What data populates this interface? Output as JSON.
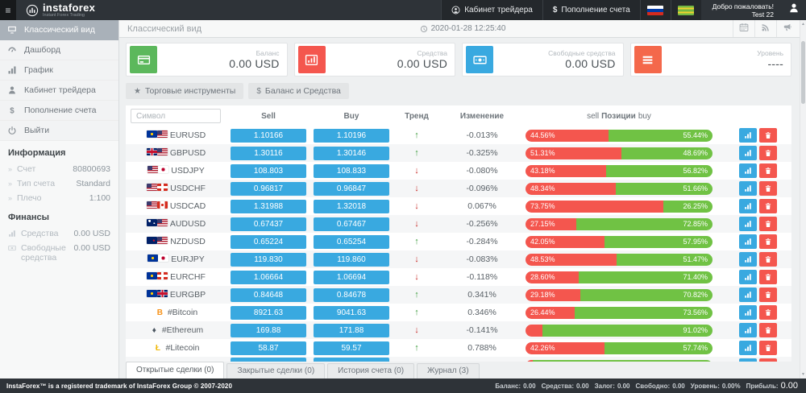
{
  "glyphs": {
    "hamburger": "≡",
    "star": "★",
    "dollar": "$",
    "chevron": "»",
    "trend_up": "↑",
    "trend_down": "↓",
    "scroll_up": "▲",
    "scroll_down": "▼"
  },
  "colors": {
    "accent_blue": "#39a9e0",
    "sell_red": "#f4564e",
    "buy_green": "#70c244",
    "navbar_dark": "#2e3338"
  },
  "navbar": {
    "logo_text": "instaforex",
    "logo_sub": "Instant Forex Trading",
    "trader_cabinet_label": "Кабинет трейдера",
    "deposit_label": "Пополнение счета",
    "welcome_line1": "Добро пожаловать!",
    "welcome_line2": "Test 22"
  },
  "topbar": {
    "page_title": "Классический вид",
    "datetime": "2020-01-28 12:25:40"
  },
  "sidebar": {
    "items": [
      {
        "id": "classic",
        "label": "Классический вид",
        "icon": "monitor-icon",
        "active": true
      },
      {
        "id": "dashboard",
        "label": "Дашборд",
        "icon": "dashboard-icon",
        "active": false
      },
      {
        "id": "chart",
        "label": "График",
        "icon": "chart-icon",
        "active": false
      },
      {
        "id": "cabinet",
        "label": "Кабинет трейдера",
        "icon": "user-icon",
        "active": false
      },
      {
        "id": "deposit",
        "label": "Пополнение счета",
        "icon": "dollar-icon",
        "active": false
      },
      {
        "id": "logout",
        "label": "Выйти",
        "icon": "power-icon",
        "active": false
      }
    ],
    "info_section": {
      "title": "Информация",
      "rows": [
        {
          "label": "Счет",
          "value": "80800693"
        },
        {
          "label": "Тип счета",
          "value": "Standard"
        },
        {
          "label": "Плечо",
          "value": "1:100"
        }
      ]
    },
    "finance_section": {
      "title": "Финансы",
      "rows": [
        {
          "label": "Средства",
          "value": "0.00 USD",
          "icon": "chart-icon"
        },
        {
          "label": "Свободные средства",
          "value": "0.00 USD",
          "icon": "money-icon"
        }
      ]
    }
  },
  "cards": [
    {
      "label": "Баланс",
      "value": "0.00 USD",
      "color": "#5cb85c",
      "icon": "credit-card-icon"
    },
    {
      "label": "Средства",
      "value": "0.00 USD",
      "color": "#f4564e",
      "icon": "bar-chart-icon"
    },
    {
      "label": "Свободные средства",
      "value": "0.00 USD",
      "color": "#39a9e0",
      "icon": "money-icon"
    },
    {
      "label": "Уровень",
      "value": "----",
      "color": "#f4684b",
      "icon": "list-icon"
    }
  ],
  "toolbar": {
    "instruments_label": "Торговые инструменты",
    "balance_label": "Баланс и Средства"
  },
  "table": {
    "symbol_placeholder": "Символ",
    "headers": {
      "sell": "Sell",
      "buy": "Buy",
      "trend": "Тренд",
      "change": "Изменение",
      "pos_left": "sell",
      "pos_mid": "Позиции",
      "pos_right": "buy"
    },
    "rows": [
      {
        "symbol": "EURUSD",
        "icons": [
          {
            "flag": "eu"
          },
          {
            "flag": "us"
          }
        ],
        "sell": "1.10166",
        "buy": "1.10196",
        "trend": "up",
        "change": "-0.013%",
        "sell_pct": 44.56,
        "buy_pct": 55.44,
        "sell_label": "44.56%",
        "buy_label": "55.44%"
      },
      {
        "symbol": "GBPUSD",
        "icons": [
          {
            "flag": "gb"
          },
          {
            "flag": "us"
          }
        ],
        "sell": "1.30116",
        "buy": "1.30146",
        "trend": "up",
        "change": "-0.325%",
        "sell_pct": 51.31,
        "buy_pct": 48.69,
        "sell_label": "51.31%",
        "buy_label": "48.69%"
      },
      {
        "symbol": "USDJPY",
        "icons": [
          {
            "flag": "us"
          },
          {
            "flag": "jp"
          }
        ],
        "sell": "108.803",
        "buy": "108.833",
        "trend": "down",
        "change": "-0.080%",
        "sell_pct": 43.18,
        "buy_pct": 56.82,
        "sell_label": "43.18%",
        "buy_label": "56.82%"
      },
      {
        "symbol": "USDCHF",
        "icons": [
          {
            "flag": "us"
          },
          {
            "flag": "ch"
          }
        ],
        "sell": "0.96817",
        "buy": "0.96847",
        "trend": "down",
        "change": "-0.096%",
        "sell_pct": 48.34,
        "buy_pct": 51.66,
        "sell_label": "48.34%",
        "buy_label": "51.66%"
      },
      {
        "symbol": "USDCAD",
        "icons": [
          {
            "flag": "us"
          },
          {
            "flag": "ca"
          }
        ],
        "sell": "1.31988",
        "buy": "1.32018",
        "trend": "down",
        "change": "0.067%",
        "sell_pct": 73.75,
        "buy_pct": 26.25,
        "sell_label": "73.75%",
        "buy_label": "26.25%"
      },
      {
        "symbol": "AUDUSD",
        "icons": [
          {
            "flag": "au"
          },
          {
            "flag": "us"
          }
        ],
        "sell": "0.67437",
        "buy": "0.67467",
        "trend": "down",
        "change": "-0.256%",
        "sell_pct": 27.15,
        "buy_pct": 72.85,
        "sell_label": "27.15%",
        "buy_label": "72.85%"
      },
      {
        "symbol": "NZDUSD",
        "icons": [
          {
            "flag": "nz"
          },
          {
            "flag": "us"
          }
        ],
        "sell": "0.65224",
        "buy": "0.65254",
        "trend": "up",
        "change": "-0.284%",
        "sell_pct": 42.05,
        "buy_pct": 57.95,
        "sell_label": "42.05%",
        "buy_label": "57.95%"
      },
      {
        "symbol": "EURJPY",
        "icons": [
          {
            "flag": "eu"
          },
          {
            "flag": "jp"
          }
        ],
        "sell": "119.830",
        "buy": "119.860",
        "trend": "down",
        "change": "-0.083%",
        "sell_pct": 48.53,
        "buy_pct": 51.47,
        "sell_label": "48.53%",
        "buy_label": "51.47%"
      },
      {
        "symbol": "EURCHF",
        "icons": [
          {
            "flag": "eu"
          },
          {
            "flag": "ch"
          }
        ],
        "sell": "1.06664",
        "buy": "1.06694",
        "trend": "down",
        "change": "-0.118%",
        "sell_pct": 28.6,
        "buy_pct": 71.4,
        "sell_label": "28.60%",
        "buy_label": "71.40%"
      },
      {
        "symbol": "EURGBP",
        "icons": [
          {
            "flag": "eu"
          },
          {
            "flag": "gb"
          }
        ],
        "sell": "0.84648",
        "buy": "0.84678",
        "trend": "up",
        "change": "0.341%",
        "sell_pct": 29.18,
        "buy_pct": 70.82,
        "sell_label": "29.18%",
        "buy_label": "70.82%"
      },
      {
        "symbol": "#Bitcoin",
        "icons": [
          {
            "glyph": "B",
            "color": "#f7931a"
          }
        ],
        "sell": "8921.63",
        "buy": "9041.63",
        "trend": "up",
        "change": "0.346%",
        "sell_pct": 26.44,
        "buy_pct": 73.56,
        "sell_label": "26.44%",
        "buy_label": "73.56%"
      },
      {
        "symbol": "#Ethereum",
        "icons": [
          {
            "glyph": "♦",
            "color": "#4a5560"
          }
        ],
        "sell": "169.88",
        "buy": "171.88",
        "trend": "down",
        "change": "-0.141%",
        "sell_pct": 8.98,
        "buy_pct": 91.02,
        "sell_label": "",
        "buy_label": "91.02%"
      },
      {
        "symbol": "#Litecoin",
        "icons": [
          {
            "glyph": "Ł",
            "color": "#f0b90b"
          }
        ],
        "sell": "58.87",
        "buy": "59.57",
        "trend": "up",
        "change": "0.788%",
        "sell_pct": 42.26,
        "buy_pct": 57.74,
        "sell_label": "42.26%",
        "buy_label": "57.74%"
      },
      {
        "symbol": "",
        "icons": [
          {
            "glyph": "●",
            "color": "#39a9e0"
          }
        ],
        "sell": "",
        "buy": "",
        "trend": "",
        "change": "",
        "sell_pct": 4,
        "buy_pct": 96,
        "sell_label": "",
        "buy_label": ""
      }
    ]
  },
  "tabs": [
    {
      "label": "Открытые сделки (0)",
      "active": true
    },
    {
      "label": "Закрытые сделки (0)",
      "active": false
    },
    {
      "label": "История счета (0)",
      "active": false
    },
    {
      "label": "Журнал (3)",
      "active": false
    }
  ],
  "footer": {
    "left": "InstaForex™ is a registered trademark of InstaForex Group © 2007-2020",
    "stats": [
      {
        "label": "Баланс:",
        "value": "0.00",
        "big": false
      },
      {
        "label": "Средства:",
        "value": "0.00",
        "big": false
      },
      {
        "label": "Залог:",
        "value": "0.00",
        "big": false
      },
      {
        "label": "Свободно:",
        "value": "0.00",
        "big": false
      },
      {
        "label": "Уровень:",
        "value": "0.00%",
        "big": false
      },
      {
        "label": "Прибыль:",
        "value": "0.00",
        "big": true
      }
    ]
  }
}
